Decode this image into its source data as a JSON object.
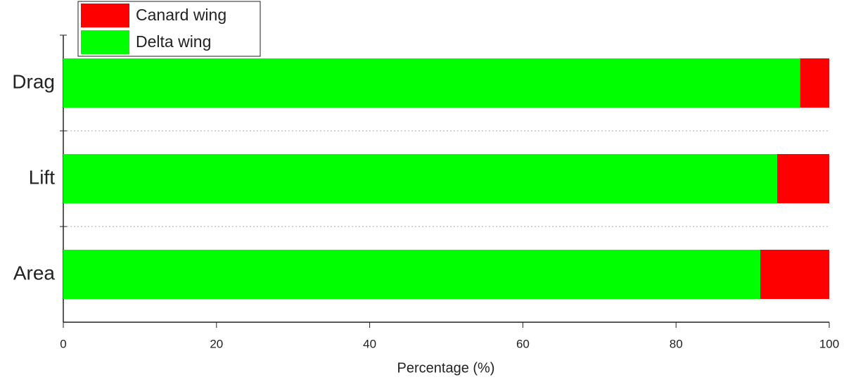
{
  "chart_data": {
    "type": "stacked-bar-horizontal",
    "x_label": "Percentage (%)",
    "categories": [
      "Drag",
      "Lift",
      "Area"
    ],
    "series": [
      {
        "name": "Delta wing",
        "color": "#00ff00",
        "values": [
          96.2,
          93.2,
          91.0
        ]
      },
      {
        "name": "Canard wing",
        "color": "#ff0000",
        "values": [
          3.8,
          6.8,
          9.0
        ]
      }
    ],
    "xlim": [
      0,
      100
    ],
    "xticks": [
      0,
      20,
      40,
      60,
      80,
      100
    ],
    "grid": true,
    "legend": "top-left"
  }
}
